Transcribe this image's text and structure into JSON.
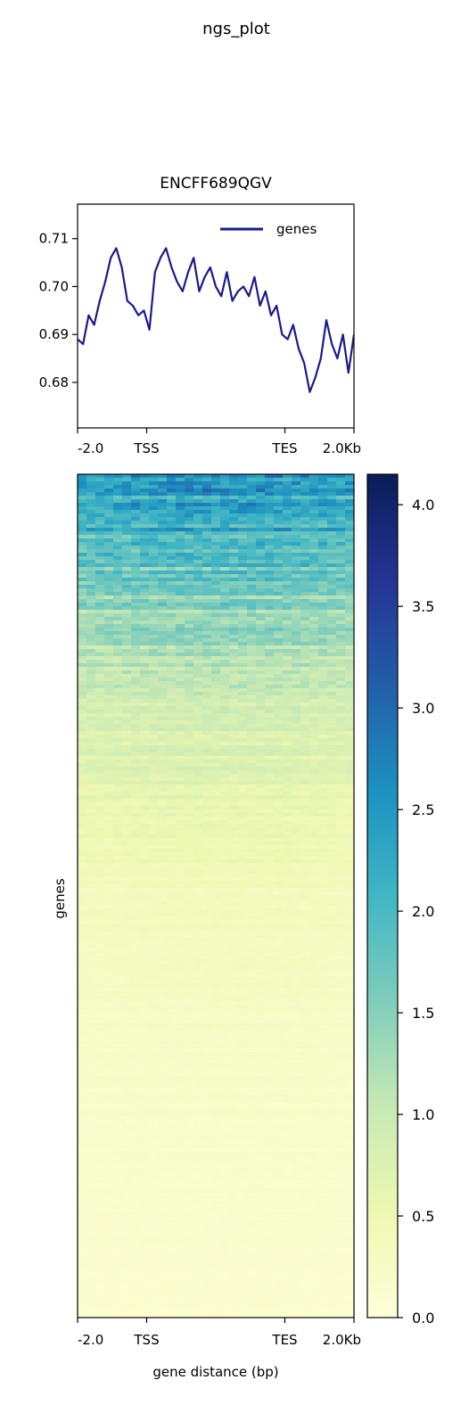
{
  "suptitle": "ngs_plot",
  "colors": {
    "profile_line": "#1a1a8c",
    "axes": "#000000",
    "background": "#ffffff"
  },
  "chart_data": [
    {
      "type": "line",
      "title": "ENCFF689QGV",
      "xlabel": "",
      "ylabel": "",
      "x_ticks": [
        "-2.0",
        "TSS",
        "TES",
        "2.0Kb"
      ],
      "x_tick_positions": [
        0,
        25,
        75,
        100
      ],
      "xlim": [
        0,
        100
      ],
      "ylim": [
        0.6705,
        0.7172
      ],
      "y_ticks": [
        "0.68",
        "0.69",
        "0.70",
        "0.71"
      ],
      "y_tick_values": [
        0.68,
        0.69,
        0.7,
        0.71
      ],
      "legend": {
        "position": "top-right"
      },
      "series": [
        {
          "name": "genes",
          "x": [
            0,
            2,
            4,
            6,
            8,
            10,
            12,
            14,
            16,
            18,
            20,
            22,
            24,
            26,
            28,
            30,
            32,
            34,
            36,
            38,
            40,
            42,
            44,
            46,
            48,
            50,
            52,
            54,
            56,
            58,
            60,
            62,
            64,
            66,
            68,
            70,
            72,
            74,
            76,
            78,
            80,
            82,
            84,
            86,
            88,
            90,
            92,
            94,
            96,
            98,
            100
          ],
          "y": [
            0.689,
            0.688,
            0.694,
            0.692,
            0.697,
            0.701,
            0.706,
            0.708,
            0.704,
            0.697,
            0.696,
            0.694,
            0.695,
            0.691,
            0.703,
            0.706,
            0.708,
            0.704,
            0.701,
            0.699,
            0.703,
            0.706,
            0.699,
            0.702,
            0.704,
            0.7,
            0.698,
            0.703,
            0.697,
            0.699,
            0.7,
            0.698,
            0.702,
            0.696,
            0.699,
            0.694,
            0.696,
            0.69,
            0.689,
            0.692,
            0.687,
            0.684,
            0.678,
            0.681,
            0.685,
            0.693,
            0.688,
            0.685,
            0.69,
            0.682,
            0.69
          ]
        }
      ]
    },
    {
      "type": "heatmap",
      "title": "",
      "xlabel": "gene distance (bp)",
      "ylabel": "genes",
      "x_ticks": [
        "-2.0",
        "TSS",
        "TES",
        "2.0Kb"
      ],
      "x_tick_positions": [
        0,
        25,
        75,
        100
      ],
      "xlim": [
        0,
        100
      ],
      "colorbar": {
        "colormap": "YlGnBu",
        "range": [
          0,
          4.15
        ],
        "ticks": [
          "0.0",
          "0.5",
          "1.0",
          "1.5",
          "2.0",
          "2.5",
          "3.0",
          "3.5",
          "4.0"
        ],
        "tick_values": [
          0,
          0.5,
          1.0,
          1.5,
          2.0,
          2.5,
          3.0,
          3.5,
          4.0
        ]
      },
      "row_profile": {
        "fraction": [
          0.0,
          0.03,
          0.08,
          0.15,
          0.25,
          0.35,
          0.5,
          0.7,
          1.0
        ],
        "value": [
          2.5,
          2.2,
          1.9,
          1.4,
          0.95,
          0.65,
          0.35,
          0.2,
          0.1
        ]
      }
    }
  ]
}
